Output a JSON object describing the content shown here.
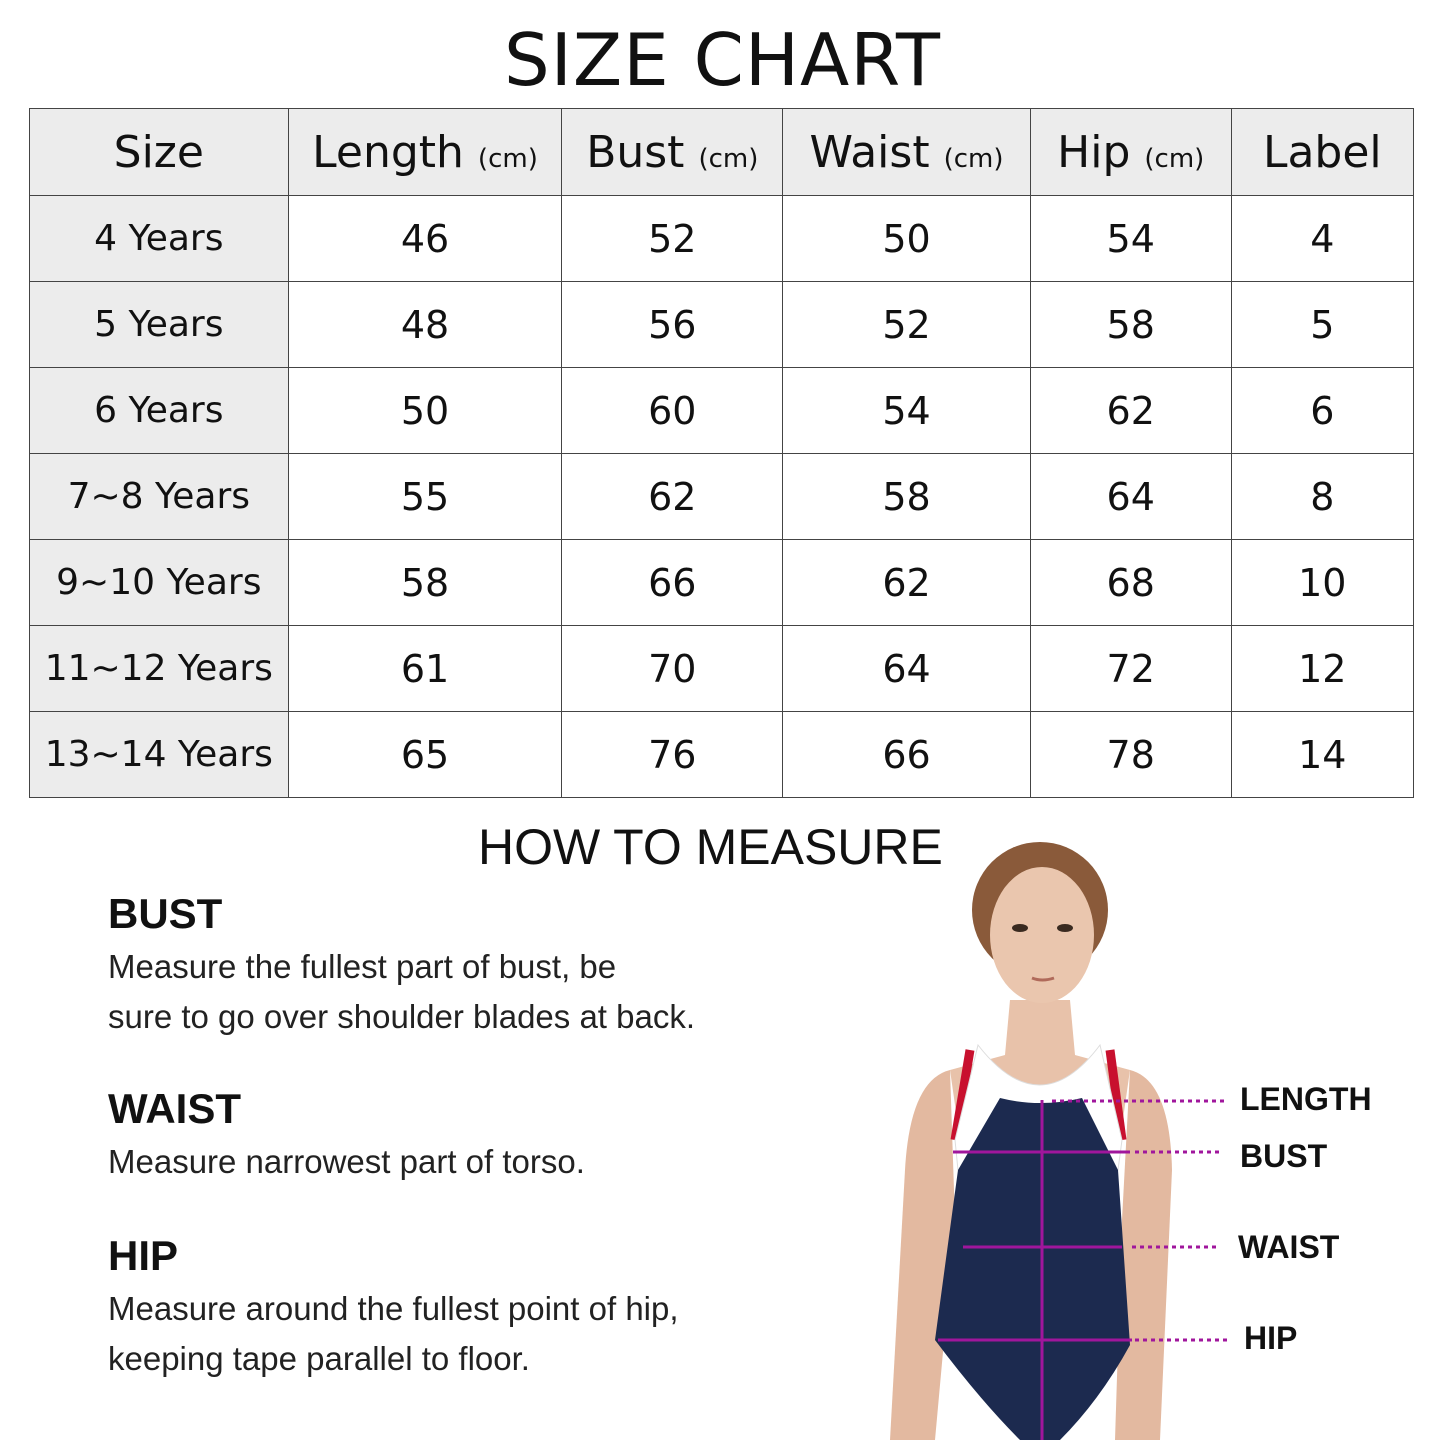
{
  "title": "SIZE CHART",
  "table": {
    "headers": [
      {
        "label": "Size",
        "unit": ""
      },
      {
        "label": "Length",
        "unit": "(cm)"
      },
      {
        "label": "Bust",
        "unit": "(cm)"
      },
      {
        "label": "Waist",
        "unit": "(cm)"
      },
      {
        "label": "Hip",
        "unit": "(cm)"
      },
      {
        "label": "Label",
        "unit": ""
      }
    ],
    "rows": [
      [
        "4 Years",
        "46",
        "52",
        "50",
        "54",
        "4"
      ],
      [
        "5 Years",
        "48",
        "56",
        "52",
        "58",
        "5"
      ],
      [
        "6 Years",
        "50",
        "60",
        "54",
        "62",
        "6"
      ],
      [
        "7~8 Years",
        "55",
        "62",
        "58",
        "64",
        "8"
      ],
      [
        "9~10 Years",
        "58",
        "66",
        "62",
        "68",
        "10"
      ],
      [
        "11~12 Years",
        "61",
        "70",
        "64",
        "72",
        "12"
      ],
      [
        "13~14 Years",
        "65",
        "76",
        "66",
        "78",
        "14"
      ]
    ]
  },
  "how_to": {
    "title": "HOW TO MEASURE",
    "sections": [
      {
        "heading": "BUST",
        "lines": [
          "Measure the fullest part of bust, be",
          "sure to go over shoulder blades at back."
        ]
      },
      {
        "heading": "WAIST",
        "lines": [
          "Measure narrowest part of torso."
        ]
      },
      {
        "heading": "HIP",
        "lines": [
          "Measure around the fullest point of hip,",
          "keeping tape parallel to floor."
        ]
      }
    ],
    "figure_labels": [
      "LENGTH",
      "BUST",
      "WAIST",
      "HIP"
    ]
  },
  "colors": {
    "header_bg": "#ececec",
    "measure_line": "#a0169c",
    "suit": "#1c2a4f"
  }
}
